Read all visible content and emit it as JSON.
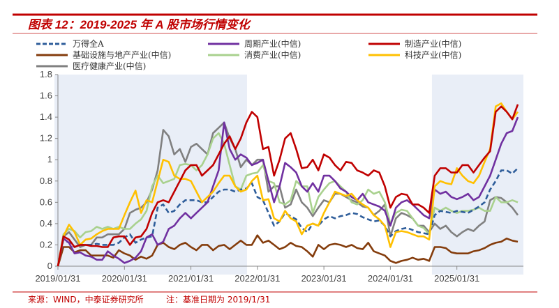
{
  "title": "图表 12：2019-2025 年 A 股市场行情变化",
  "footer": {
    "source": "来源：WIND，中泰证券研究所",
    "note": "注：基准日期为 2019/1/31"
  },
  "colors": {
    "accent": "#c00000",
    "shade": "#e9eef7"
  },
  "chart_data": {
    "type": "line",
    "title": "2019-2025 年 A 股市场行情变化",
    "xlabel": "",
    "ylabel": "",
    "x_start": "2019/01",
    "x_frequency": "monthly",
    "xticks": [
      "2019/01/31",
      "2020/01/31",
      "2021/01/31",
      "2022/01/31",
      "2023/01/31",
      "2024/01/31",
      "2025/01/31"
    ],
    "yticks": [
      "0",
      "0.2",
      "0.4",
      "0.6",
      "0.8",
      "1",
      "1.2",
      "1.4",
      "1.6",
      "1.8"
    ],
    "ylim": [
      0,
      1.8
    ],
    "grid": false,
    "legend_position": "top",
    "shaded_periods": [
      [
        "2019/01",
        "2021/11"
      ],
      [
        "2024/09",
        "2025/12"
      ]
    ],
    "series": [
      {
        "name": "万得全A",
        "color": "#2e5d9a",
        "dash": true,
        "values": [
          0,
          0.25,
          0.22,
          0.18,
          0.2,
          0.2,
          0.2,
          0.21,
          0.2,
          0.2,
          0.2,
          0.22,
          0.27,
          0.3,
          0.22,
          0.25,
          0.27,
          0.28,
          0.55,
          0.58,
          0.5,
          0.52,
          0.58,
          0.62,
          0.62,
          0.62,
          0.6,
          0.6,
          0.65,
          0.7,
          0.72,
          0.72,
          0.7,
          0.72,
          0.73,
          0.78,
          0.65,
          0.62,
          0.5,
          0.38,
          0.42,
          0.5,
          0.47,
          0.44,
          0.36,
          0.32,
          0.4,
          0.38,
          0.44,
          0.47,
          0.45,
          0.47,
          0.48,
          0.5,
          0.49,
          0.46,
          0.44,
          0.42,
          0.43,
          0.38,
          0.28,
          0.33,
          0.35,
          0.36,
          0.34,
          0.32,
          0.31,
          0.3,
          0.48,
          0.52,
          0.51,
          0.5,
          0.52,
          0.51,
          0.5,
          0.53,
          0.56,
          0.6,
          0.72,
          0.8,
          0.9,
          0.9,
          0.87,
          0.92
        ]
      },
      {
        "name": "周期产业(中信)",
        "color": "#7030a0",
        "dash": false,
        "values": [
          0,
          0.26,
          0.22,
          0.12,
          0.13,
          0.1,
          0.09,
          0.06,
          0.06,
          0.14,
          0.1,
          0.07,
          0.03,
          0.05,
          0.08,
          0.14,
          0.27,
          0.3,
          0.2,
          0.23,
          0.35,
          0.38,
          0.45,
          0.5,
          0.45,
          0.5,
          0.55,
          0.6,
          0.75,
          0.9,
          1.35,
          1.1,
          1.0,
          1.05,
          1.02,
          0.95,
          0.97,
          1.0,
          0.8,
          0.6,
          0.75,
          0.97,
          0.93,
          0.88,
          0.75,
          0.7,
          0.78,
          0.7,
          0.85,
          0.85,
          0.8,
          0.73,
          0.7,
          0.65,
          0.62,
          0.68,
          0.6,
          0.58,
          0.56,
          0.52,
          0.38,
          0.55,
          0.6,
          0.62,
          0.58,
          0.53,
          0.48,
          0.45,
          0.72,
          0.68,
          0.7,
          0.65,
          0.63,
          0.65,
          0.68,
          0.62,
          0.65,
          0.75,
          0.85,
          1.0,
          1.15,
          1.25,
          1.27,
          1.4
        ]
      },
      {
        "name": "制造产业(中信)",
        "color": "#c00000",
        "dash": false,
        "values": [
          0,
          0.28,
          0.25,
          0.18,
          0.2,
          0.2,
          0.19,
          0.19,
          0.18,
          0.18,
          0.27,
          0.28,
          0.28,
          0.2,
          0.27,
          0.28,
          0.35,
          0.5,
          0.6,
          0.62,
          0.6,
          0.7,
          0.8,
          0.9,
          0.95,
          0.95,
          0.85,
          0.9,
          0.95,
          1.05,
          1.15,
          1.22,
          1.1,
          1.2,
          1.35,
          1.45,
          1.4,
          1.1,
          1.12,
          0.85,
          1.0,
          1.2,
          1.25,
          1.1,
          0.92,
          0.93,
          1.0,
          0.9,
          1.05,
          1.02,
          0.95,
          0.9,
          0.98,
          0.97,
          0.9,
          0.88,
          0.85,
          0.9,
          0.88,
          0.75,
          0.55,
          0.65,
          0.68,
          0.67,
          0.58,
          0.58,
          0.55,
          0.5,
          0.85,
          0.92,
          0.92,
          0.88,
          0.88,
          0.95,
          0.95,
          0.88,
          0.95,
          1.02,
          1.08,
          1.45,
          1.5,
          1.45,
          1.38,
          1.52
        ]
      },
      {
        "name": "基础设施与地产产业(中信)",
        "color": "#843c0c",
        "dash": false,
        "values": [
          0,
          0.18,
          0.18,
          0.13,
          0.15,
          0.15,
          0.1,
          0.1,
          0.1,
          0.1,
          0.08,
          0.15,
          0.12,
          0.1,
          0.06,
          0.09,
          0.07,
          0.1,
          0.2,
          0.22,
          0.18,
          0.16,
          0.2,
          0.22,
          0.18,
          0.15,
          0.2,
          0.2,
          0.15,
          0.19,
          0.2,
          0.16,
          0.2,
          0.24,
          0.2,
          0.2,
          0.29,
          0.22,
          0.24,
          0.2,
          0.16,
          0.18,
          0.22,
          0.19,
          0.18,
          0.14,
          0.09,
          0.2,
          0.16,
          0.2,
          0.21,
          0.2,
          0.18,
          0.2,
          0.17,
          0.16,
          0.22,
          0.14,
          0.12,
          0.1,
          0.05,
          0.03,
          0.05,
          0.06,
          0.08,
          0.06,
          0.07,
          0.05,
          0.18,
          0.18,
          0.17,
          0.13,
          0.12,
          0.12,
          0.12,
          0.14,
          0.15,
          0.17,
          0.2,
          0.22,
          0.23,
          0.26,
          0.24,
          0.23
        ]
      },
      {
        "name": "消费产业(中信)",
        "color": "#a9d18e",
        "dash": false,
        "values": [
          0,
          0.3,
          0.35,
          0.33,
          0.27,
          0.32,
          0.33,
          0.37,
          0.35,
          0.37,
          0.35,
          0.37,
          0.35,
          0.35,
          0.4,
          0.44,
          0.52,
          0.75,
          0.85,
          0.78,
          0.8,
          0.82,
          0.95,
          0.96,
          0.95,
          0.9,
          0.95,
          1.05,
          1.2,
          1.25,
          1.15,
          0.95,
          0.75,
          0.72,
          0.85,
          0.87,
          0.88,
          0.95,
          0.8,
          0.78,
          0.6,
          0.58,
          0.62,
          0.8,
          0.75,
          0.75,
          0.5,
          0.65,
          0.72,
          0.78,
          0.8,
          0.75,
          0.7,
          0.6,
          0.58,
          0.62,
          0.72,
          0.68,
          0.7,
          0.6,
          0.4,
          0.5,
          0.53,
          0.52,
          0.45,
          0.38,
          0.36,
          0.3,
          0.55,
          0.52,
          0.55,
          0.52,
          0.5,
          0.52,
          0.52,
          0.53,
          0.55,
          0.52,
          0.52,
          0.65,
          0.6,
          0.6,
          0.62,
          0.6
        ]
      },
      {
        "name": "科技产业(中信)",
        "color": "#ffc000",
        "dash": false,
        "values": [
          0,
          0.28,
          0.39,
          0.32,
          0.2,
          0.25,
          0.26,
          0.3,
          0.33,
          0.35,
          0.35,
          0.35,
          0.48,
          0.6,
          0.71,
          0.5,
          0.62,
          0.6,
          0.8,
          1.0,
          0.98,
          0.85,
          0.82,
          0.82,
          0.8,
          0.7,
          0.6,
          0.65,
          0.7,
          0.78,
          0.85,
          0.85,
          0.75,
          0.7,
          0.72,
          0.8,
          0.85,
          0.62,
          0.63,
          0.45,
          0.42,
          0.52,
          0.45,
          0.42,
          0.3,
          0.38,
          0.4,
          0.38,
          0.5,
          0.6,
          0.7,
          0.68,
          0.66,
          0.68,
          0.62,
          0.58,
          0.55,
          0.48,
          0.44,
          0.38,
          0.18,
          0.32,
          0.33,
          0.32,
          0.3,
          0.28,
          0.28,
          0.25,
          0.75,
          0.8,
          0.78,
          0.77,
          0.92,
          0.85,
          0.8,
          0.78,
          0.85,
          0.98,
          1.1,
          1.5,
          1.53,
          1.45,
          1.38,
          1.45
        ]
      },
      {
        "name": "医疗健康产业(中信)",
        "color": "#808080",
        "dash": false,
        "values": [
          0,
          0.28,
          0.32,
          0.25,
          0.18,
          0.2,
          0.2,
          0.27,
          0.27,
          0.3,
          0.3,
          0.3,
          0.35,
          0.5,
          0.53,
          0.55,
          0.6,
          0.72,
          0.9,
          1.28,
          1.22,
          1.05,
          1.1,
          0.98,
          1.12,
          1.15,
          1.1,
          1.05,
          1.25,
          1.3,
          1.35,
          1.2,
          1.1,
          0.93,
          1.0,
          0.95,
          1.0,
          1.0,
          0.7,
          0.75,
          0.75,
          0.55,
          0.58,
          0.72,
          0.6,
          0.55,
          0.47,
          0.55,
          0.62,
          0.6,
          0.68,
          0.68,
          0.65,
          0.62,
          0.6,
          0.56,
          0.55,
          0.48,
          0.52,
          0.58,
          0.28,
          0.45,
          0.5,
          0.48,
          0.45,
          0.38,
          0.38,
          0.32,
          0.4,
          0.35,
          0.38,
          0.32,
          0.28,
          0.32,
          0.35,
          0.33,
          0.38,
          0.42,
          0.62,
          0.65,
          0.64,
          0.6,
          0.55,
          0.48
        ]
      }
    ]
  }
}
